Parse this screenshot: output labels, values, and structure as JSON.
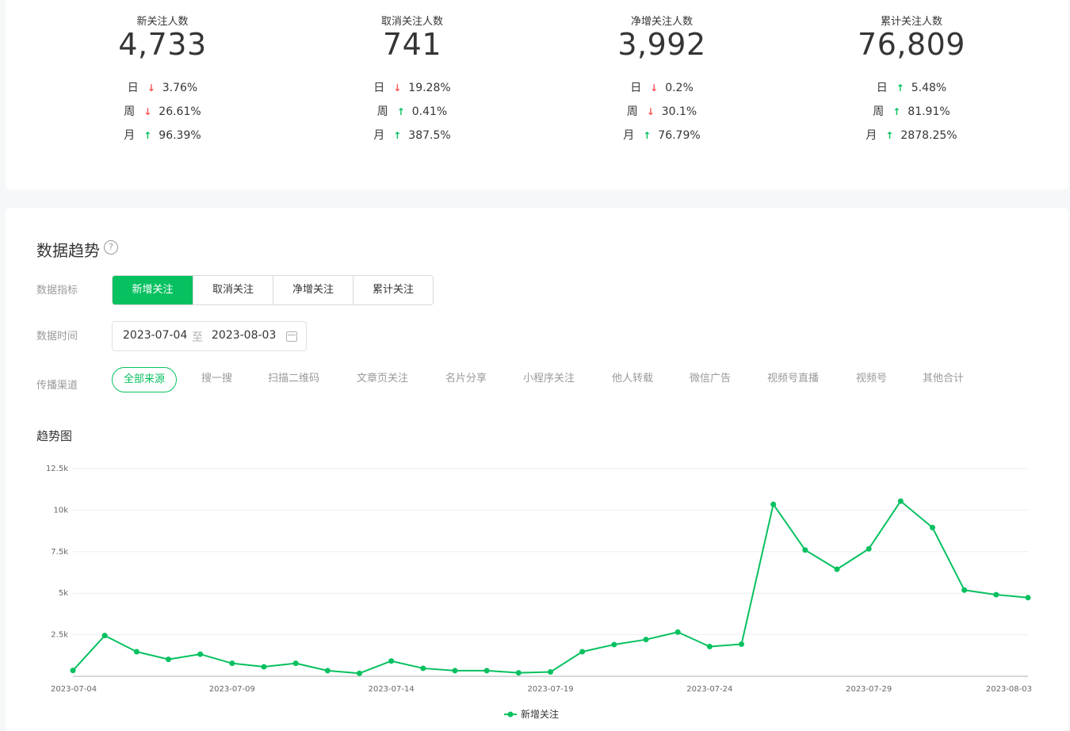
{
  "stats": [
    {
      "title": "新关注人数",
      "value": "4,733",
      "rows": [
        {
          "label": "日",
          "dir": "down",
          "pct": "3.76%"
        },
        {
          "label": "周",
          "dir": "down",
          "pct": "26.61%"
        },
        {
          "label": "月",
          "dir": "up",
          "pct": "96.39%"
        }
      ]
    },
    {
      "title": "取消关注人数",
      "value": "741",
      "rows": [
        {
          "label": "日",
          "dir": "down",
          "pct": "19.28%"
        },
        {
          "label": "周",
          "dir": "up",
          "pct": "0.41%"
        },
        {
          "label": "月",
          "dir": "up",
          "pct": "387.5%"
        }
      ]
    },
    {
      "title": "净增关注人数",
      "value": "3,992",
      "rows": [
        {
          "label": "日",
          "dir": "down",
          "pct": "0.2%"
        },
        {
          "label": "周",
          "dir": "down",
          "pct": "30.1%"
        },
        {
          "label": "月",
          "dir": "up",
          "pct": "76.79%"
        }
      ]
    },
    {
      "title": "累计关注人数",
      "value": "76,809",
      "rows": [
        {
          "label": "日",
          "dir": "up",
          "pct": "5.48%"
        },
        {
          "label": "周",
          "dir": "up",
          "pct": "81.91%"
        },
        {
          "label": "月",
          "dir": "up",
          "pct": "2878.25%"
        }
      ]
    }
  ],
  "trend": {
    "title": "数据趋势",
    "help_glyph": "?",
    "metric_label": "数据指标",
    "metrics": [
      "新增关注",
      "取消关注",
      "净增关注",
      "累计关注"
    ],
    "active_metric": 0,
    "time_label": "数据时间",
    "date_start": "2023-07-04",
    "date_sep": "至",
    "date_end": "2023-08-03",
    "channel_label": "传播渠道",
    "channels": [
      "全部来源",
      "搜一搜",
      "扫描二维码",
      "文章页关注",
      "名片分享",
      "小程序关注",
      "他人转载",
      "微信广告",
      "视频号直播",
      "视频号",
      "其他合计"
    ],
    "active_channel": 0,
    "chart_title": "趋势图"
  },
  "colors": {
    "accent": "#07c160",
    "down": "#fa5151"
  },
  "chart_data": {
    "type": "line",
    "x": [
      "2023-07-04",
      "2023-07-05",
      "2023-07-06",
      "2023-07-07",
      "2023-07-08",
      "2023-07-09",
      "2023-07-10",
      "2023-07-11",
      "2023-07-12",
      "2023-07-13",
      "2023-07-14",
      "2023-07-15",
      "2023-07-16",
      "2023-07-17",
      "2023-07-18",
      "2023-07-19",
      "2023-07-20",
      "2023-07-21",
      "2023-07-22",
      "2023-07-23",
      "2023-07-24",
      "2023-07-25",
      "2023-07-26",
      "2023-07-27",
      "2023-07-28",
      "2023-07-29",
      "2023-07-30",
      "2023-07-31",
      "2023-08-01",
      "2023-08-02",
      "2023-08-03"
    ],
    "x_tick_labels": [
      "2023-07-04",
      "2023-07-09",
      "2023-07-14",
      "2023-07-19",
      "2023-07-24",
      "2023-07-29",
      "2023-08-03"
    ],
    "series": [
      {
        "name": "新增关注",
        "values": [
          350,
          2450,
          1480,
          1020,
          1330,
          780,
          570,
          780,
          340,
          180,
          920,
          480,
          340,
          340,
          210,
          260,
          1480,
          1910,
          2210,
          2660,
          1790,
          1930,
          10350,
          7600,
          6440,
          7670,
          10540,
          8950,
          5190,
          4910,
          4733
        ]
      }
    ],
    "yticks": [
      2500,
      5000,
      7500,
      10000,
      12500
    ],
    "ytick_labels": [
      "2.5k",
      "5k",
      "7.5k",
      "10k",
      "12.5k"
    ],
    "ylim": [
      0,
      12500
    ],
    "legend": "bottom-center",
    "grid": true
  }
}
